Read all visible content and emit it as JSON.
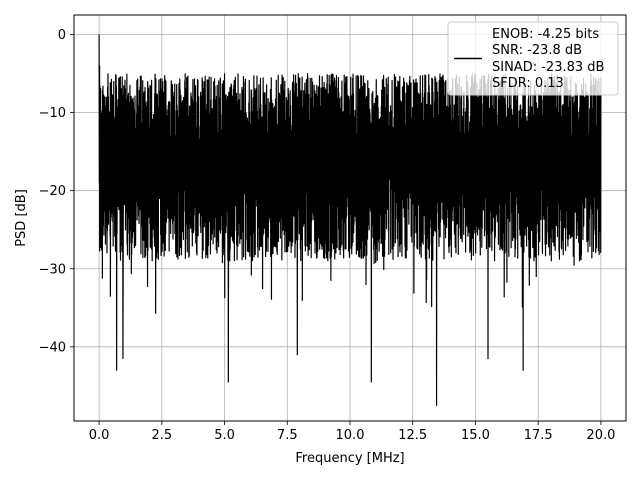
{
  "chart_data": {
    "type": "line",
    "title": "",
    "xlabel": "Frequency [MHz]",
    "ylabel": "PSD [dB]",
    "xlim": [
      -1,
      21.0
    ],
    "ylim": [
      -49.5,
      2.5
    ],
    "x_ticks": [
      0.0,
      2.5,
      5.0,
      7.5,
      10.0,
      12.5,
      15.0,
      17.5,
      20.0
    ],
    "x_tick_labels": [
      "0.0",
      "2.5",
      "5.0",
      "7.5",
      "10.0",
      "12.5",
      "15.0",
      "17.5",
      "20.0"
    ],
    "y_ticks": [
      0,
      -10,
      -20,
      -30,
      -40
    ],
    "y_tick_labels": [
      "0",
      "−10",
      "−20",
      "−30",
      "−40"
    ],
    "grid": true,
    "legend_position": "top-right",
    "series": [
      {
        "label_lines": [
          "ENOB: -4.25 bits",
          "SNR: -23.8 dB",
          "SINAD: -23.83 dB",
          "SFDR: 0.13"
        ],
        "color": "#000000",
        "x_range": [
          0.0,
          20.0
        ],
        "noise_floor": -16,
        "noise_top_typical": -9,
        "noise_bottom_typical": -27,
        "peak": {
          "x": 0.0,
          "y": 0.0
        },
        "deep_dips": [
          {
            "x": 0.45,
            "y": -33.5
          },
          {
            "x": 0.7,
            "y": -43.0
          },
          {
            "x": 0.95,
            "y": -41.5
          },
          {
            "x": 5.15,
            "y": -44.5
          },
          {
            "x": 7.9,
            "y": -41.0
          },
          {
            "x": 10.85,
            "y": -44.5
          },
          {
            "x": 13.45,
            "y": -47.5
          },
          {
            "x": 15.5,
            "y": -41.5
          },
          {
            "x": 16.9,
            "y": -43.0
          }
        ]
      }
    ]
  }
}
